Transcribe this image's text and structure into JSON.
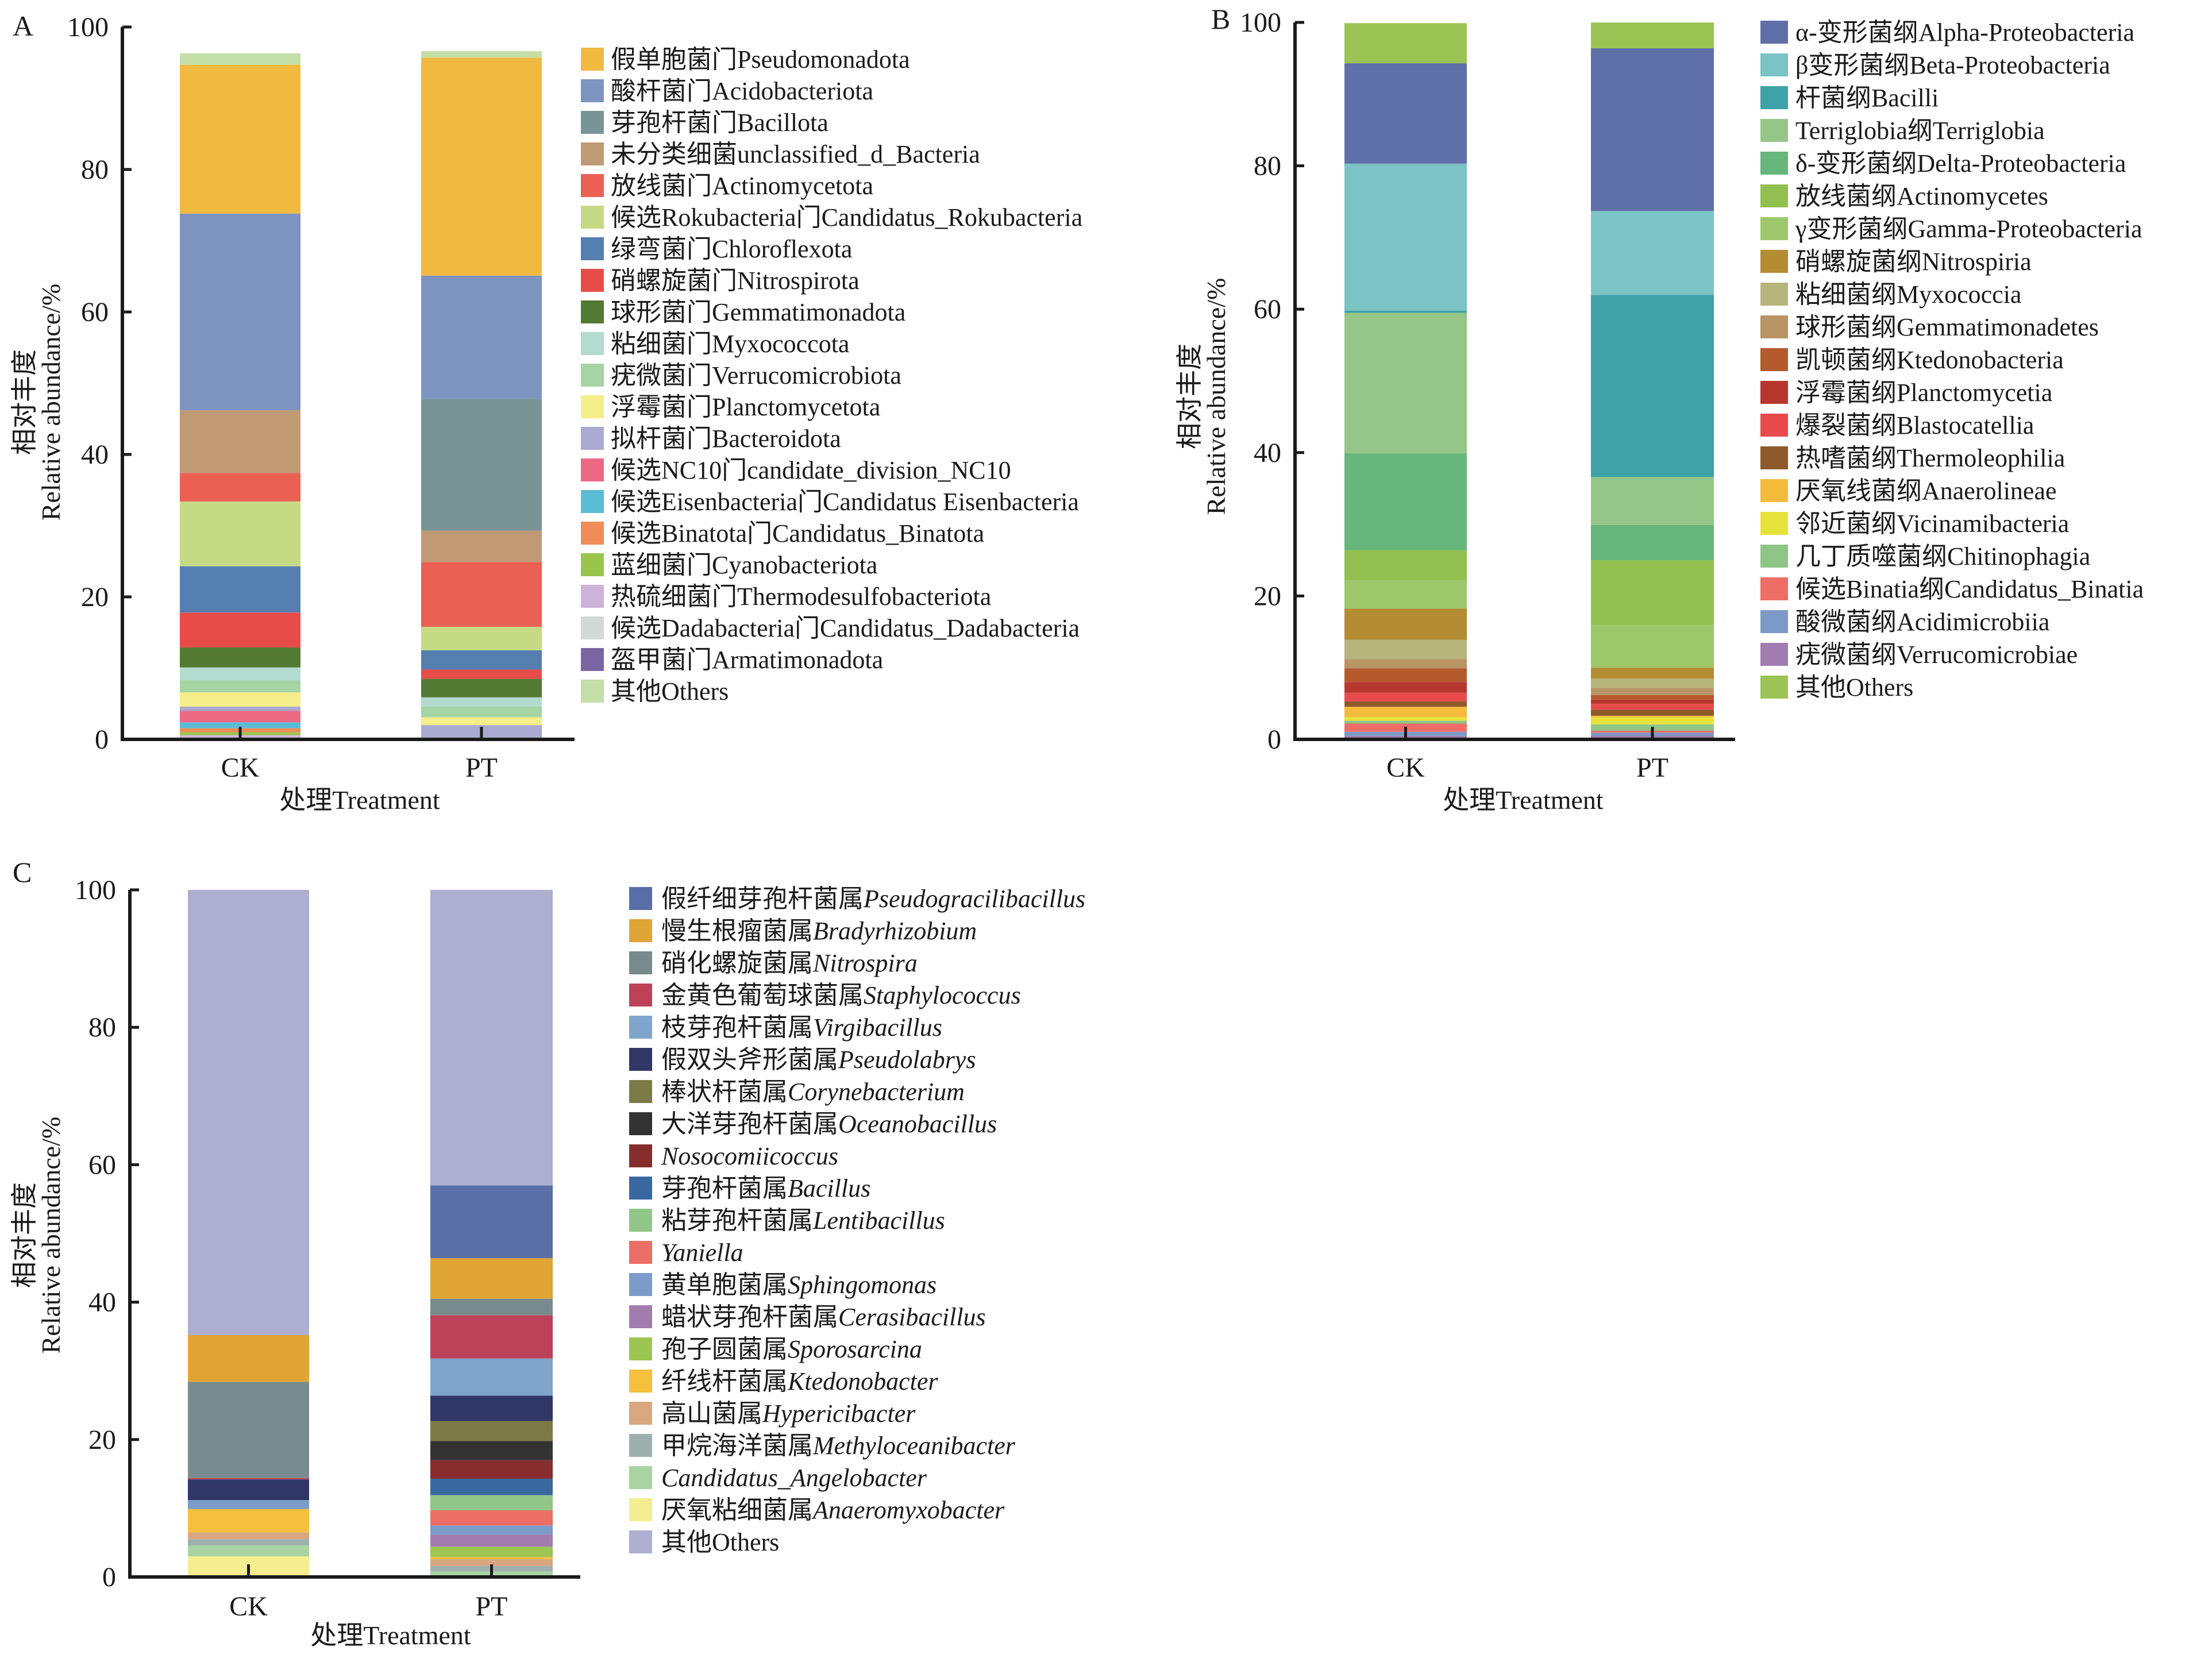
{
  "chart_data": [
    {
      "panel": "A",
      "type": "bar",
      "stacked": true,
      "title": "",
      "categories": [
        "CK",
        "PT"
      ],
      "xlabel": "处理Treatment",
      "ylabel_cn": "相对丰度",
      "ylabel": "Relative abundance/%",
      "ylim": [
        0,
        100
      ],
      "yticks": [
        0,
        20,
        40,
        60,
        80,
        100
      ],
      "legend_position": "right",
      "series": [
        {
          "name": "假单胞菌门Pseudomonadota",
          "color": "#f2b941",
          "values": [
            20.9,
            30.6
          ]
        },
        {
          "name": "酸杆菌门Acidobacteriota",
          "color": "#7e94c0",
          "values": [
            27.6,
            17.3
          ]
        },
        {
          "name": "芽孢杆菌门Bacillota",
          "color": "#789497",
          "values": [
            0.0,
            18.5
          ]
        },
        {
          "name": "未分类细菌unclassified_d_Bacteria",
          "color": "#bf9a74",
          "values": [
            8.8,
            4.4
          ]
        },
        {
          "name": "放线菌门Actinomycetota",
          "color": "#ea6053",
          "values": [
            4.0,
            9.1
          ]
        },
        {
          "name": "候选Rokubacteria门Candidatus_Rokubacteria",
          "color": "#c6da86",
          "values": [
            9.1,
            3.3
          ]
        },
        {
          "name": "绿弯菌门Chloroflexota",
          "color": "#557eb1",
          "values": [
            6.5,
            2.7
          ]
        },
        {
          "name": "硝螺旋菌门Nitrospirota",
          "color": "#e84c48",
          "values": [
            4.9,
            1.3
          ]
        },
        {
          "name": "球形菌门Gemmatimonadota",
          "color": "#527a32",
          "values": [
            2.8,
            2.6
          ]
        },
        {
          "name": "粘细菌门Myxococcota",
          "color": "#b3dbd0",
          "values": [
            1.8,
            1.3
          ]
        },
        {
          "name": "疣微菌门Verrucomicrobiota",
          "color": "#a6d4a4",
          "values": [
            1.7,
            1.5
          ]
        },
        {
          "name": "浮霉菌门Planctomycetota",
          "color": "#f5ee8b",
          "values": [
            2.0,
            1.1
          ]
        },
        {
          "name": "拟杆菌门Bacteroidota",
          "color": "#a9a9d1",
          "values": [
            0.6,
            1.75
          ]
        },
        {
          "name": "候选NC10门candidate_division_NC10",
          "color": "#ec6883",
          "values": [
            1.6,
            0.0
          ]
        },
        {
          "name": "候选Eisenbacteria门Candidatus Eisenbacteria",
          "color": "#5bbcd6",
          "values": [
            0.84,
            0.0
          ]
        },
        {
          "name": "候选Binatota门Candidatus_Binatota",
          "color": "#f08c57",
          "values": [
            0.56,
            0.0
          ]
        },
        {
          "name": "蓝细菌门Cyanobacteriota",
          "color": "#99c64a",
          "values": [
            0.4,
            0.25
          ]
        },
        {
          "name": "热硫细菌门Thermodesulfobacteriota",
          "color": "#cfb2da",
          "values": [
            0.35,
            0.0
          ]
        },
        {
          "name": "候选Dadabacteria门Candidatus_Dadabacteria",
          "color": "#d1dad6",
          "values": [
            0.15,
            0.0
          ]
        },
        {
          "name": "盔甲菌门Armatimonadota",
          "color": "#7b66a4",
          "values": [
            0.1,
            0.0
          ]
        },
        {
          "name": "其他Others",
          "color": "#c3dea6",
          "values": [
            1.6,
            0.9
          ]
        }
      ]
    },
    {
      "panel": "B",
      "type": "bar",
      "stacked": true,
      "title": "",
      "categories": [
        "CK",
        "PT"
      ],
      "xlabel": "处理Treatment",
      "ylabel_cn": "相对丰度",
      "ylabel": "Relative abundance/%",
      "ylim": [
        0,
        100
      ],
      "yticks": [
        0,
        20,
        40,
        60,
        80,
        100
      ],
      "legend_position": "right",
      "series": [
        {
          "name": "α-变形菌纲Alpha-Proteobacteria",
          "color": "#5f70a8",
          "values": [
            14.0,
            22.7
          ]
        },
        {
          "name": "β变形菌纲Beta-Proteobacteria",
          "color": "#7bc3c4",
          "values": [
            20.5,
            11.7
          ]
        },
        {
          "name": "杆菌纲Bacilli",
          "color": "#3fa2a8",
          "values": [
            0.3,
            25.4
          ]
        },
        {
          "name": "Terriglobia纲Terriglobia",
          "color": "#95c688",
          "values": [
            19.6,
            6.7
          ]
        },
        {
          "name": "δ-变形菌纲Delta-Proteobacteria",
          "color": "#67b67b",
          "values": [
            13.5,
            4.9
          ]
        },
        {
          "name": "放线菌纲Actinomycetes",
          "color": "#92c050",
          "values": [
            4.2,
            9.0
          ]
        },
        {
          "name": "γ变形菌纲Gamma-Proteobacteria",
          "color": "#9cc76a",
          "values": [
            3.95,
            6.0
          ]
        },
        {
          "name": "硝螺旋菌纲Nitrospiria",
          "color": "#b38c33",
          "values": [
            4.35,
            1.5
          ]
        },
        {
          "name": "粘细菌纲Myxococcia",
          "color": "#b5b57c",
          "values": [
            2.7,
            1.3
          ]
        },
        {
          "name": "球形菌纲Gemmatimonadetes",
          "color": "#b99465",
          "values": [
            1.3,
            1.0
          ]
        },
        {
          "name": "凯顿菌纲Ktedonobacteria",
          "color": "#b55a2d",
          "values": [
            1.9,
            0.64
          ]
        },
        {
          "name": "浮霉菌纲Planctomycetia",
          "color": "#b7372f",
          "values": [
            1.5,
            0.6
          ]
        },
        {
          "name": "爆裂菌纲Blastocatellia",
          "color": "#e84a4c",
          "values": [
            1.2,
            0.8
          ]
        },
        {
          "name": "热嗜菌纲Thermoleophilia",
          "color": "#8e5a2b",
          "values": [
            0.75,
            0.85
          ]
        },
        {
          "name": "厌氧线菌纲Anaerolineae",
          "color": "#f4bb3b",
          "values": [
            1.45,
            0.2
          ]
        },
        {
          "name": "邻近菌纲Vicinamibacteria",
          "color": "#e7e23a",
          "values": [
            0.5,
            1.0
          ]
        },
        {
          "name": "几丁质噬菌纲Chitinophagia",
          "color": "#8fc587",
          "values": [
            0.4,
            0.9
          ]
        },
        {
          "name": "候选Binatia纲Candidatus_Binatia",
          "color": "#ee6e67",
          "values": [
            1.14,
            0.27
          ]
        },
        {
          "name": "酸微菌纲Acidimicrobiia",
          "color": "#7b9ac8",
          "values": [
            0.56,
            0.45
          ]
        },
        {
          "name": "疣微菌纲Verrucomicrobiae",
          "color": "#a07cb1",
          "values": [
            0.5,
            0.48
          ]
        },
        {
          "name": "其他Others",
          "color": "#9bc455",
          "values": [
            5.6,
            3.6
          ]
        }
      ]
    },
    {
      "panel": "C",
      "type": "bar",
      "stacked": true,
      "title": "",
      "categories": [
        "CK",
        "PT"
      ],
      "xlabel": "处理Treatment",
      "ylabel_cn": "相对丰度",
      "ylabel": "Relative abundance/%",
      "ylim": [
        0,
        100
      ],
      "yticks": [
        0,
        20,
        40,
        60,
        80,
        100
      ],
      "legend_position": "right",
      "series": [
        {
          "name_cn": "假纤细芽孢杆菌属",
          "name_latin": "Pseudogracilibacillus",
          "color": "#5a6fa8",
          "values": [
            0.0,
            10.6
          ]
        },
        {
          "name_cn": "慢生根瘤菌属",
          "name_latin": "Bradyrhizobium",
          "color": "#e0a535",
          "values": [
            6.8,
            5.9
          ]
        },
        {
          "name_cn": "硝化螺旋菌属",
          "name_latin": "Nitrospira",
          "color": "#788b8c",
          "values": [
            14.0,
            2.4
          ]
        },
        {
          "name_cn": "金黄色葡萄球菌属",
          "name_latin": "Staphylococcus",
          "color": "#bd4159",
          "values": [
            0.2,
            6.3
          ]
        },
        {
          "name_cn": "枝芽孢杆菌属",
          "name_latin": "Virgibacillus",
          "color": "#7fa5cc",
          "values": [
            0.0,
            5.4
          ]
        },
        {
          "name_cn": "假双头斧形菌属",
          "name_latin": "Pseudolabrys",
          "color": "#303767",
          "values": [
            3.0,
            3.7
          ]
        },
        {
          "name_cn": "棒状杆菌属",
          "name_latin": "Corynebacterium",
          "color": "#7c7a47",
          "values": [
            0.0,
            2.9
          ]
        },
        {
          "name_cn": "大洋芽孢杆菌属",
          "name_latin": "Oceanobacillus",
          "color": "#333333",
          "values": [
            0.0,
            2.8
          ]
        },
        {
          "name_cn": "",
          "name_latin": "Nosocomiicoccus",
          "color": "#872d2d",
          "values": [
            0.0,
            2.7
          ]
        },
        {
          "name_cn": "芽孢杆菌属",
          "name_latin": "Bacillus",
          "color": "#3a68a0",
          "values": [
            0.0,
            2.4
          ]
        },
        {
          "name_cn": "粘芽孢杆菌属",
          "name_latin": "Lentibacillus",
          "color": "#92c688",
          "values": [
            0.0,
            2.2
          ]
        },
        {
          "name_cn": "",
          "name_latin": "Yaniella",
          "color": "#ec6f67",
          "values": [
            0.0,
            2.2
          ]
        },
        {
          "name_cn": "黄单胞菌属",
          "name_latin": "Sphingomonas",
          "color": "#7b9bc9",
          "values": [
            1.3,
            1.3
          ]
        },
        {
          "name_cn": "蜡状芽孢杆菌属",
          "name_latin": "Cerasibacillus",
          "color": "#a27caf",
          "values": [
            0.0,
            1.8
          ]
        },
        {
          "name_cn": "孢子圆菌属",
          "name_latin": "Sporosarcina",
          "color": "#9cc651",
          "values": [
            0.0,
            1.5
          ]
        },
        {
          "name_cn": "纤线杆菌属",
          "name_latin": "Ktedonobacter",
          "color": "#f4c03e",
          "values": [
            3.4,
            0.3
          ]
        },
        {
          "name_cn": "高山菌属",
          "name_latin": "Hypericibacter",
          "color": "#d8a67f",
          "values": [
            1.0,
            1.0
          ]
        },
        {
          "name_cn": "甲烷海洋菌属",
          "name_latin": "Methyloceanibacter",
          "color": "#9eb0ae",
          "values": [
            0.9,
            0.8
          ]
        },
        {
          "name_cn": "",
          "name_latin": "Candidatus_Angelobacter",
          "color": "#a8d4a2",
          "values": [
            1.6,
            0.6
          ]
        },
        {
          "name_cn": "厌氧粘细菌属",
          "name_latin": "Anaeromyxobacter",
          "color": "#f4ee91",
          "values": [
            3.0,
            0.2
          ]
        },
        {
          "name_cn": "其他",
          "name_latin": "Others",
          "color": "#adaed0",
          "values": [
            64.8,
            43.0
          ],
          "latin_italic": false
        }
      ]
    }
  ],
  "panels": {
    "A": {
      "label": "A"
    },
    "B": {
      "label": "B"
    },
    "C": {
      "label": "C"
    }
  }
}
